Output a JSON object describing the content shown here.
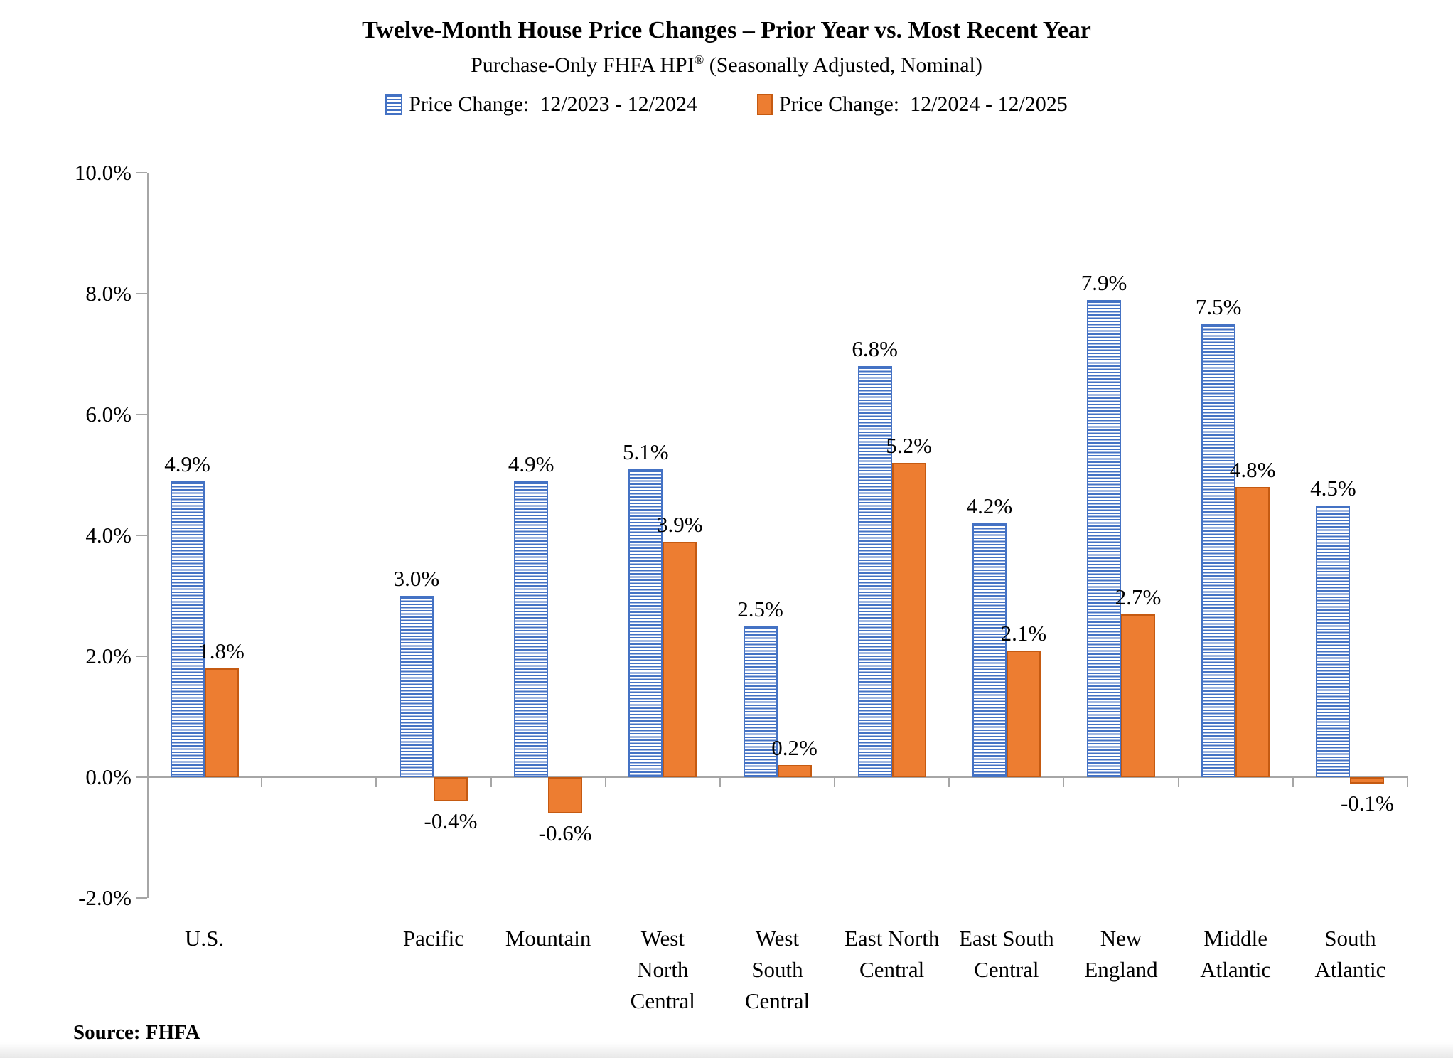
{
  "header": {
    "title": "Twelve-Month House Price Changes – Prior Year vs. Most Recent Year",
    "subtitle": {
      "pre": "Purchase-Only FHFA HPI",
      "sup": "®",
      "post": " (Seasonally Adjusted, Nominal)"
    }
  },
  "legend": {
    "items": [
      {
        "label": "Price Change:  12/2023 - 12/2024",
        "swatch": "blue-striped"
      },
      {
        "label": "Price Change:  12/2024 - 12/2025",
        "swatch": "orange-solid"
      }
    ]
  },
  "source_note": "Source: FHFA",
  "colors": {
    "blue": "#4472C4",
    "orange": "#ED7D31",
    "orange_border": "#C55A11",
    "axis": "#A6A6A6",
    "text": "#000000"
  },
  "chart_data": {
    "type": "bar",
    "title": "Twelve-Month House Price Changes – Prior Year vs. Most Recent Year",
    "subtitle": "Purchase-Only FHFA HPI® (Seasonally Adjusted, Nominal)",
    "xlabel": "",
    "ylabel": "",
    "ylim": [
      -2,
      10
    ],
    "yticks": [
      10,
      8,
      6,
      4,
      2,
      0,
      -2
    ],
    "ytick_labels": [
      "10.0%",
      "8.0%",
      "6.0%",
      "4.0%",
      "2.0%",
      "0.0%",
      "-2.0%"
    ],
    "grid": false,
    "legend_position": "top",
    "slots": 11,
    "categories": [
      {
        "slot": 0,
        "label": "U.S.",
        "label_lines": [
          "U.S."
        ]
      },
      {
        "slot": 2,
        "label": "Pacific",
        "label_lines": [
          "Pacific"
        ]
      },
      {
        "slot": 3,
        "label": "Mountain",
        "label_lines": [
          "Mountain"
        ]
      },
      {
        "slot": 4,
        "label": "West North Central",
        "label_lines": [
          "West",
          "North",
          "Central"
        ]
      },
      {
        "slot": 5,
        "label": "West South Central",
        "label_lines": [
          "West",
          "South",
          "Central"
        ]
      },
      {
        "slot": 6,
        "label": "East North Central",
        "label_lines": [
          "East North",
          "Central"
        ]
      },
      {
        "slot": 7,
        "label": "East South Central",
        "label_lines": [
          "East South",
          "Central"
        ]
      },
      {
        "slot": 8,
        "label": "New England",
        "label_lines": [
          "New",
          "England"
        ]
      },
      {
        "slot": 9,
        "label": "Middle Atlantic",
        "label_lines": [
          "Middle",
          "Atlantic"
        ]
      },
      {
        "slot": 10,
        "label": "South Atlantic",
        "label_lines": [
          "South",
          "Atlantic"
        ]
      }
    ],
    "series": [
      {
        "name": "Price Change:  12/2023 - 12/2024",
        "color_key": "blue",
        "values": [
          4.9,
          3.0,
          4.9,
          5.1,
          2.5,
          6.8,
          4.2,
          7.9,
          7.5,
          4.5
        ],
        "labels": [
          "4.9%",
          "3.0%",
          "4.9%",
          "5.1%",
          "2.5%",
          "6.8%",
          "4.2%",
          "7.9%",
          "7.5%",
          "4.5%"
        ]
      },
      {
        "name": "Price Change:  12/2024 - 12/2025",
        "color_key": "orange",
        "values": [
          1.8,
          -0.4,
          -0.6,
          3.9,
          0.2,
          5.2,
          2.1,
          2.7,
          4.8,
          -0.1
        ],
        "labels": [
          "1.8%",
          "-0.4%",
          "-0.6%",
          "3.9%",
          "0.2%",
          "5.2%",
          "2.1%",
          "2.7%",
          "4.8%",
          "-0.1%"
        ]
      }
    ]
  }
}
